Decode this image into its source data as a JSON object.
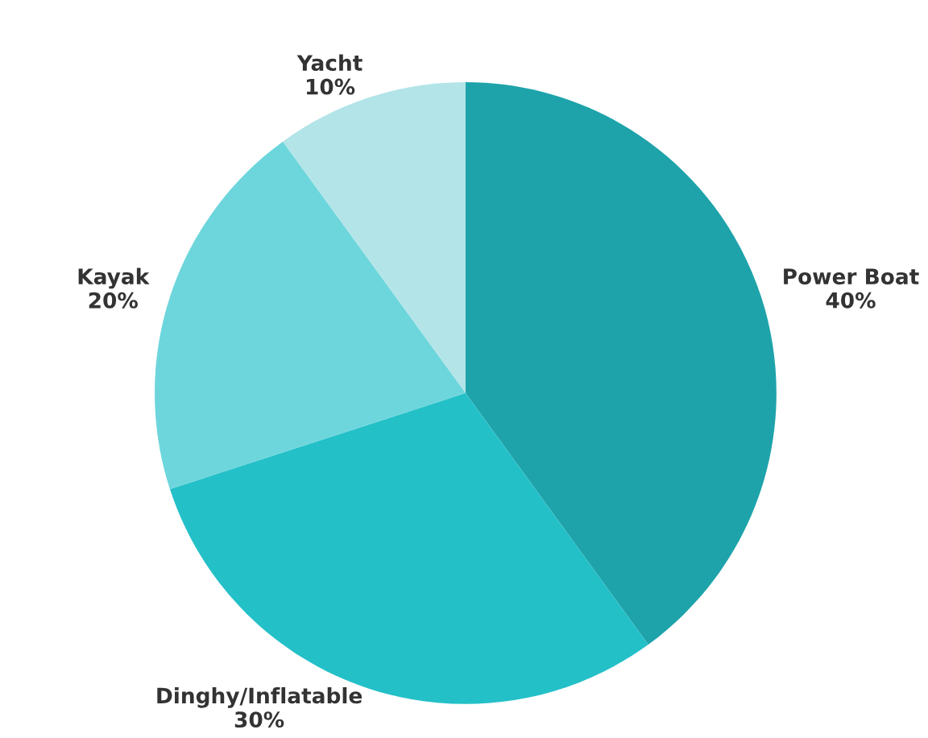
{
  "chart_data": {
    "type": "pie",
    "categories": [
      "Power Boat",
      "Dinghy/Inflatable",
      "Kayak",
      "Yacht"
    ],
    "values": [
      40,
      30,
      20,
      10
    ],
    "value_labels": [
      "40%",
      "30%",
      "20%",
      "10%"
    ],
    "colors": [
      "#1ea3aa",
      "#24c0c8",
      "#6dd6dc",
      "#b2e4e8"
    ],
    "legend": false
  }
}
